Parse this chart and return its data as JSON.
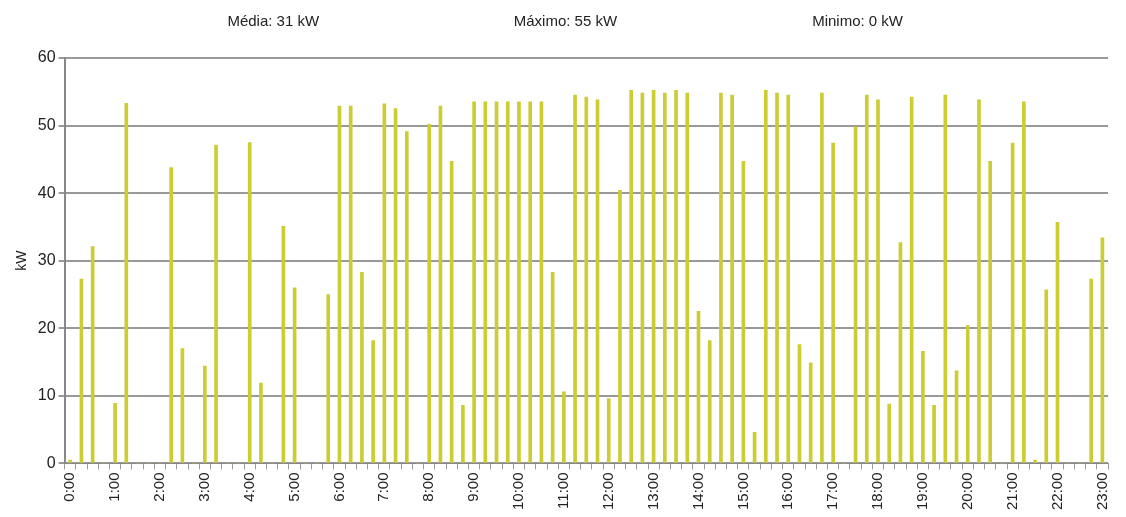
{
  "chart_data": {
    "type": "bar",
    "ylabel": "kW",
    "annotations": [
      "Média: 31 kW",
      "Máximo: 55 kW",
      "Minimo: 0 kW"
    ],
    "categories": [
      "0:00",
      null,
      null,
      null,
      "1:00",
      null,
      null,
      null,
      "2:00",
      null,
      null,
      null,
      "3:00",
      null,
      null,
      null,
      "4:00",
      null,
      null,
      null,
      "5:00",
      null,
      null,
      null,
      "6:00",
      null,
      null,
      null,
      "7:00",
      null,
      null,
      null,
      "8:00",
      null,
      null,
      null,
      "9:00",
      null,
      null,
      null,
      "10:00",
      null,
      null,
      null,
      "11:00",
      null,
      null,
      null,
      "12:00",
      null,
      null,
      null,
      "13:00",
      null,
      null,
      null,
      "14:00",
      null,
      null,
      null,
      "15:00",
      null,
      null,
      null,
      "16:00",
      null,
      null,
      null,
      "17:00",
      null,
      null,
      null,
      "18:00",
      null,
      null,
      null,
      "19:00",
      null,
      null,
      null,
      "20:00",
      null,
      null,
      null,
      "21:00",
      null,
      null,
      null,
      "22:00",
      null,
      null,
      null,
      "23:00"
    ],
    "values": [
      0.5,
      27.3,
      32.1,
      0,
      8.9,
      53.3,
      0,
      0,
      0,
      43.8,
      17.0,
      0,
      14.4,
      47.1,
      0,
      0,
      47.5,
      11.9,
      0,
      35.1,
      26.0,
      0,
      0,
      25.0,
      52.9,
      52.9,
      28.3,
      18.2,
      53.2,
      52.5,
      49.1,
      0,
      50.2,
      52.9,
      44.7,
      8.6,
      53.5,
      53.5,
      53.5,
      53.5,
      53.5,
      53.5,
      53.5,
      28.3,
      10.6,
      54.5,
      54.2,
      53.8,
      9.6,
      40.4,
      55.2,
      54.8,
      55.2,
      54.8,
      55.2,
      54.8,
      22.5,
      18.2,
      54.8,
      54.5,
      44.7,
      4.6,
      55.2,
      54.8,
      54.5,
      17.6,
      14.9,
      54.8,
      47.4,
      0,
      49.8,
      54.5,
      53.8,
      8.8,
      32.7,
      54.2,
      16.6,
      8.6,
      54.5,
      13.7,
      20.4,
      53.8,
      44.7,
      0,
      47.4,
      53.5,
      0.5,
      25.7,
      35.7,
      0,
      0,
      27.3,
      33.4
    ],
    "color": "#cccc33",
    "ylim": [
      0,
      60
    ],
    "yticks": [
      0,
      10,
      20,
      30,
      40,
      50,
      60
    ],
    "grid": "y"
  }
}
